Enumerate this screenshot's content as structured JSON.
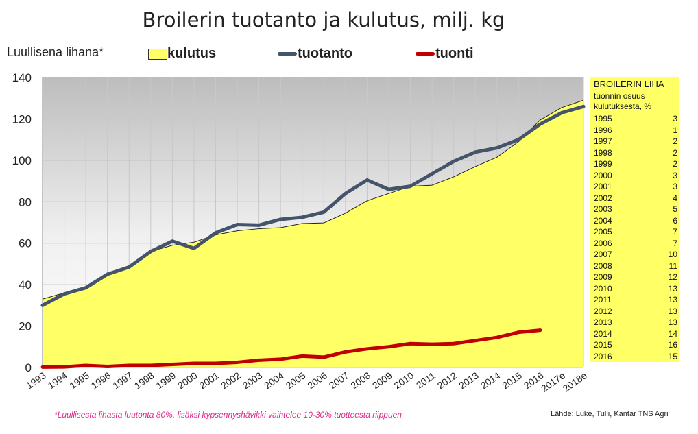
{
  "chart_data": {
    "type": "area",
    "title": "Broilerin tuotanto ja kulutus, milj. kg",
    "ylabel": "Luullisena lihana*",
    "ylim": [
      0,
      140
    ],
    "yticks": [
      0,
      20,
      40,
      60,
      80,
      100,
      120,
      140
    ],
    "grid": true,
    "legend_position": "top",
    "categories": [
      "1993",
      "1994",
      "1995",
      "1996",
      "1997",
      "1998",
      "1999",
      "2000",
      "2001",
      "2002",
      "2003",
      "2004",
      "2005",
      "2006",
      "2007",
      "2008",
      "2009",
      "2010",
      "2011",
      "2012",
      "2013",
      "2014",
      "2015",
      "2016",
      "2017e",
      "2018e"
    ],
    "series": [
      {
        "name": "kulutus",
        "kind": "area",
        "color": "#ffff66",
        "values": [
          33,
          36,
          38.5,
          45,
          48,
          56,
          59,
          60.5,
          64,
          66,
          67,
          67.5,
          69.5,
          69.8,
          74.5,
          80.5,
          84,
          87.5,
          88,
          92,
          97,
          101.5,
          109,
          119.5,
          125.5,
          129
        ]
      },
      {
        "name": "tuotanto",
        "kind": "line",
        "color": "#44546a",
        "values": [
          30,
          35.5,
          38.5,
          45,
          48.5,
          56,
          61,
          57.5,
          65,
          69,
          68.7,
          71.5,
          72.5,
          75,
          84,
          90.5,
          86,
          87.5,
          93.5,
          99.5,
          104,
          106,
          110,
          117.5,
          123,
          126
        ]
      },
      {
        "name": "tuonti",
        "kind": "line",
        "color": "#c00000",
        "values": [
          0.2,
          0.3,
          1,
          0.5,
          1,
          1,
          1.5,
          2,
          2,
          2.5,
          3.5,
          4,
          5.5,
          5,
          7.5,
          9,
          10,
          11.5,
          11.2,
          11.5,
          13,
          14.5,
          17,
          18,
          null,
          null
        ]
      }
    ]
  },
  "table": {
    "title": "BROILERIN LIHA",
    "subtitle_line1": "tuonnin osuus",
    "subtitle_line2": "kulutuksesta, %",
    "rows": [
      {
        "year": "1995",
        "value": "3"
      },
      {
        "year": "1996",
        "value": "1"
      },
      {
        "year": "1997",
        "value": "2"
      },
      {
        "year": "1998",
        "value": "2"
      },
      {
        "year": "1999",
        "value": "2"
      },
      {
        "year": "2000",
        "value": "3"
      },
      {
        "year": "2001",
        "value": "3"
      },
      {
        "year": "2002",
        "value": "4"
      },
      {
        "year": "2003",
        "value": "5"
      },
      {
        "year": "2004",
        "value": "6"
      },
      {
        "year": "2005",
        "value": "7"
      },
      {
        "year": "2006",
        "value": "7"
      },
      {
        "year": "2007",
        "value": "10"
      },
      {
        "year": "2008",
        "value": "11"
      },
      {
        "year": "2009",
        "value": "12"
      },
      {
        "year": "2010",
        "value": "13"
      },
      {
        "year": "2011",
        "value": "13"
      },
      {
        "year": "2012",
        "value": "13"
      },
      {
        "year": "2013",
        "value": "13"
      },
      {
        "year": "2014",
        "value": "14"
      },
      {
        "year": "2015",
        "value": "16"
      },
      {
        "year": "2016",
        "value": "15"
      }
    ]
  },
  "footnote": "*Luullisesta lihasta luutonta 80%, lisäksi kypsennyshävikki vaihtelee 10-30% tuotteesta riippuen",
  "source": "Lähde:  Luke, Tulli, Kantar TNS Agri"
}
